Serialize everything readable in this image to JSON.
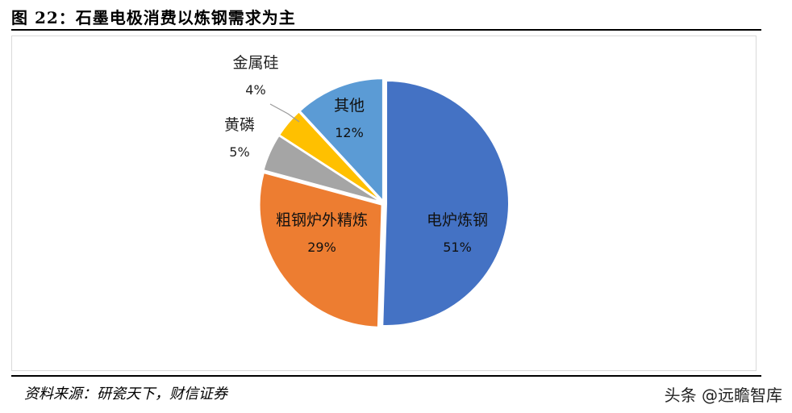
{
  "figure": {
    "title": "图 22：石墨电极消费以炼钢需求为主",
    "source": "资料来源：研瓷天下，财信证券",
    "watermark": "头条 @远瞻智库"
  },
  "chart_data": {
    "type": "pie",
    "title": "",
    "slices": [
      {
        "label": "电炉炼钢",
        "value": 51,
        "display": "51%",
        "color": "#4472C4"
      },
      {
        "label": "粗钢炉外精炼",
        "value": 29,
        "display": "29%",
        "color": "#ED7D31"
      },
      {
        "label": "黄磷",
        "value": 5,
        "display": "5%",
        "color": "#A5A5A5"
      },
      {
        "label": "金属硅",
        "value": 4,
        "display": "4%",
        "color": "#FFC000"
      },
      {
        "label": "其他",
        "value": 12,
        "display": "12%",
        "color": "#5B9BD5"
      }
    ],
    "start": "12 o'clock",
    "direction": "clockwise",
    "exploded": true,
    "legend": "none"
  }
}
